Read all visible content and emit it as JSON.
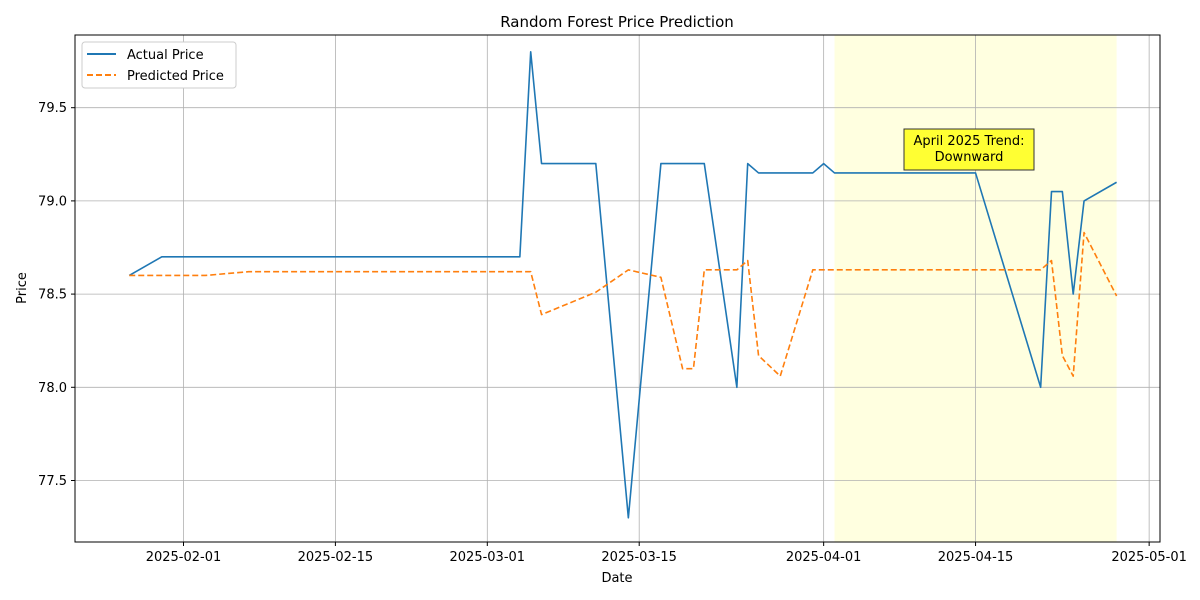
{
  "chart_data": {
    "type": "line",
    "title": "Random Forest Price Prediction",
    "xlabel": "Date",
    "ylabel": "Price",
    "xlim": [
      "2025-01-22",
      "2025-05-02"
    ],
    "ylim": [
      77.17,
      79.89
    ],
    "x_ticks": [
      "2025-02-01",
      "2025-02-15",
      "2025-03-01",
      "2025-03-15",
      "2025-04-01",
      "2025-04-15",
      "2025-05-01"
    ],
    "y_ticks": [
      77.5,
      78.0,
      78.5,
      79.0,
      79.5
    ],
    "grid": true,
    "legend_position": "top-left",
    "highlight_span": {
      "start": "2025-04-02",
      "end": "2025-04-28",
      "color": "#ffffe0"
    },
    "annotation": {
      "text_line1": "April 2025 Trend:",
      "text_line2": "Downward",
      "x": "2025-04-15",
      "y": 79.3,
      "box_color": "#ffff33"
    },
    "series": [
      {
        "name": "Actual Price",
        "color": "#1f77b4",
        "dash": "solid",
        "points": [
          [
            "2025-01-27",
            78.6
          ],
          [
            "2025-01-30",
            78.7
          ],
          [
            "2025-03-04",
            78.7
          ],
          [
            "2025-03-05",
            79.8
          ],
          [
            "2025-03-06",
            79.2
          ],
          [
            "2025-03-11",
            79.2
          ],
          [
            "2025-03-14",
            77.3
          ],
          [
            "2025-03-17",
            79.2
          ],
          [
            "2025-03-21",
            79.2
          ],
          [
            "2025-03-24",
            78.0
          ],
          [
            "2025-03-25",
            79.2
          ],
          [
            "2025-03-26",
            79.15
          ],
          [
            "2025-03-31",
            79.15
          ],
          [
            "2025-04-01",
            79.2
          ],
          [
            "2025-04-02",
            79.15
          ],
          [
            "2025-04-15",
            79.15
          ],
          [
            "2025-04-21",
            78.0
          ],
          [
            "2025-04-22",
            79.05
          ],
          [
            "2025-04-23",
            79.05
          ],
          [
            "2025-04-24",
            78.5
          ],
          [
            "2025-04-25",
            79.0
          ],
          [
            "2025-04-28",
            79.1
          ]
        ]
      },
      {
        "name": "Predicted Price",
        "color": "#ff7f0e",
        "dash": "dashed",
        "points": [
          [
            "2025-01-27",
            78.6
          ],
          [
            "2025-02-03",
            78.6
          ],
          [
            "2025-02-07",
            78.62
          ],
          [
            "2025-03-05",
            78.62
          ],
          [
            "2025-03-06",
            78.39
          ],
          [
            "2025-03-11",
            78.51
          ],
          [
            "2025-03-14",
            78.63
          ],
          [
            "2025-03-17",
            78.59
          ],
          [
            "2025-03-19",
            78.1
          ],
          [
            "2025-03-20",
            78.1
          ],
          [
            "2025-03-21",
            78.63
          ],
          [
            "2025-03-24",
            78.63
          ],
          [
            "2025-03-25",
            78.68
          ],
          [
            "2025-03-26",
            78.17
          ],
          [
            "2025-03-28",
            78.06
          ],
          [
            "2025-03-31",
            78.63
          ],
          [
            "2025-04-21",
            78.63
          ],
          [
            "2025-04-22",
            78.68
          ],
          [
            "2025-04-23",
            78.17
          ],
          [
            "2025-04-24",
            78.06
          ],
          [
            "2025-04-25",
            78.83
          ],
          [
            "2025-04-28",
            78.49
          ]
        ]
      }
    ]
  }
}
